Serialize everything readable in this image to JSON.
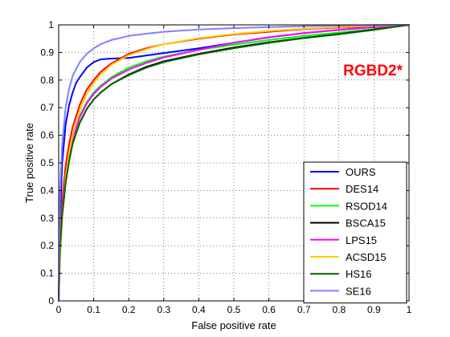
{
  "chart_data": {
    "type": "line",
    "title": "",
    "xlabel": "False positive rate",
    "ylabel": "True positive rate",
    "xlim": [
      0,
      1
    ],
    "ylim": [
      0,
      1
    ],
    "grid": true,
    "grid_style": "dotted",
    "legend_position": "bottom-right",
    "xticks": [
      "0",
      "0.1",
      "0.2",
      "0.3",
      "0.4",
      "0.5",
      "0.6",
      "0.7",
      "0.8",
      "0.9",
      "1"
    ],
    "yticks": [
      "0",
      "0.1",
      "0.2",
      "0.3",
      "0.4",
      "0.5",
      "0.6",
      "0.7",
      "0.8",
      "0.9",
      "1"
    ],
    "annotation": {
      "text": "RGBD2*",
      "color": "#ff0000"
    },
    "series": [
      {
        "name": "OURS",
        "color": "#0000ff",
        "x": [
          0,
          0.004,
          0.01,
          0.02,
          0.03,
          0.04,
          0.05,
          0.06,
          0.08,
          0.1,
          0.12,
          0.15,
          0.2,
          0.3,
          0.4,
          0.5,
          0.6,
          0.7,
          0.8,
          0.9,
          1.0
        ],
        "y": [
          0,
          0.3,
          0.5,
          0.64,
          0.71,
          0.755,
          0.79,
          0.81,
          0.845,
          0.865,
          0.875,
          0.878,
          0.88,
          0.898,
          0.915,
          0.935,
          0.955,
          0.97,
          0.982,
          0.992,
          1.0
        ]
      },
      {
        "name": "DES14",
        "color": "#ff0000",
        "x": [
          0,
          0.004,
          0.01,
          0.02,
          0.03,
          0.04,
          0.06,
          0.08,
          0.1,
          0.12,
          0.15,
          0.2,
          0.25,
          0.3,
          0.4,
          0.5,
          0.6,
          0.7,
          0.8,
          0.9,
          1.0
        ],
        "y": [
          0,
          0.22,
          0.36,
          0.49,
          0.57,
          0.63,
          0.71,
          0.765,
          0.8,
          0.83,
          0.86,
          0.895,
          0.915,
          0.93,
          0.95,
          0.965,
          0.975,
          0.985,
          0.99,
          0.995,
          1.0
        ]
      },
      {
        "name": "RSOD14",
        "color": "#00ff00",
        "x": [
          0,
          0.004,
          0.01,
          0.02,
          0.03,
          0.04,
          0.06,
          0.08,
          0.1,
          0.12,
          0.15,
          0.2,
          0.25,
          0.3,
          0.4,
          0.5,
          0.6,
          0.7,
          0.8,
          0.9,
          1.0
        ],
        "y": [
          0,
          0.2,
          0.33,
          0.45,
          0.53,
          0.59,
          0.67,
          0.72,
          0.755,
          0.78,
          0.81,
          0.845,
          0.868,
          0.885,
          0.91,
          0.928,
          0.945,
          0.96,
          0.972,
          0.985,
          1.0
        ]
      },
      {
        "name": "BSCA15",
        "color": "#000000",
        "x": [
          0,
          0.004,
          0.01,
          0.02,
          0.03,
          0.04,
          0.06,
          0.08,
          0.1,
          0.12,
          0.15,
          0.2,
          0.25,
          0.3,
          0.4,
          0.5,
          0.6,
          0.7,
          0.8,
          0.9,
          1.0
        ],
        "y": [
          0,
          0.19,
          0.31,
          0.43,
          0.51,
          0.57,
          0.645,
          0.695,
          0.73,
          0.755,
          0.785,
          0.82,
          0.848,
          0.868,
          0.895,
          0.918,
          0.937,
          0.953,
          0.967,
          0.983,
          1.0
        ]
      },
      {
        "name": "LPS15",
        "color": "#ff00ff",
        "x": [
          0,
          0.004,
          0.01,
          0.02,
          0.03,
          0.04,
          0.06,
          0.08,
          0.1,
          0.12,
          0.15,
          0.2,
          0.25,
          0.3,
          0.4,
          0.5,
          0.6,
          0.7,
          0.8,
          0.9,
          1.0
        ],
        "y": [
          0,
          0.2,
          0.33,
          0.45,
          0.53,
          0.59,
          0.665,
          0.715,
          0.75,
          0.775,
          0.805,
          0.838,
          0.862,
          0.882,
          0.91,
          0.935,
          0.955,
          0.97,
          0.982,
          0.992,
          1.0
        ]
      },
      {
        "name": "ACSD15",
        "color": "#ffcc00",
        "x": [
          0,
          0.004,
          0.01,
          0.02,
          0.03,
          0.04,
          0.06,
          0.08,
          0.1,
          0.12,
          0.15,
          0.2,
          0.25,
          0.3,
          0.4,
          0.5,
          0.6,
          0.7,
          0.8,
          0.9,
          1.0
        ],
        "y": [
          0,
          0.15,
          0.3,
          0.45,
          0.54,
          0.6,
          0.69,
          0.75,
          0.79,
          0.82,
          0.855,
          0.89,
          0.912,
          0.93,
          0.952,
          0.967,
          0.978,
          0.986,
          0.992,
          0.997,
          1.0
        ]
      },
      {
        "name": "HS16",
        "color": "#006400",
        "x": [
          0,
          0.004,
          0.01,
          0.02,
          0.03,
          0.04,
          0.06,
          0.08,
          0.1,
          0.12,
          0.15,
          0.2,
          0.25,
          0.3,
          0.4,
          0.5,
          0.6,
          0.7,
          0.8,
          0.9,
          1.0
        ],
        "y": [
          0,
          0.19,
          0.31,
          0.43,
          0.51,
          0.57,
          0.645,
          0.695,
          0.73,
          0.755,
          0.785,
          0.818,
          0.845,
          0.865,
          0.893,
          0.915,
          0.935,
          0.952,
          0.966,
          0.982,
          1.0
        ]
      },
      {
        "name": "SE16",
        "color": "#8080ff",
        "x": [
          0,
          0.004,
          0.01,
          0.02,
          0.03,
          0.04,
          0.06,
          0.08,
          0.1,
          0.12,
          0.15,
          0.2,
          0.25,
          0.3,
          0.4,
          0.5,
          0.6,
          0.7,
          0.8,
          0.9,
          1.0
        ],
        "y": [
          0,
          0.4,
          0.57,
          0.7,
          0.77,
          0.815,
          0.865,
          0.895,
          0.915,
          0.93,
          0.945,
          0.96,
          0.968,
          0.975,
          0.983,
          0.988,
          0.992,
          0.995,
          0.997,
          0.999,
          1.0
        ]
      }
    ]
  }
}
